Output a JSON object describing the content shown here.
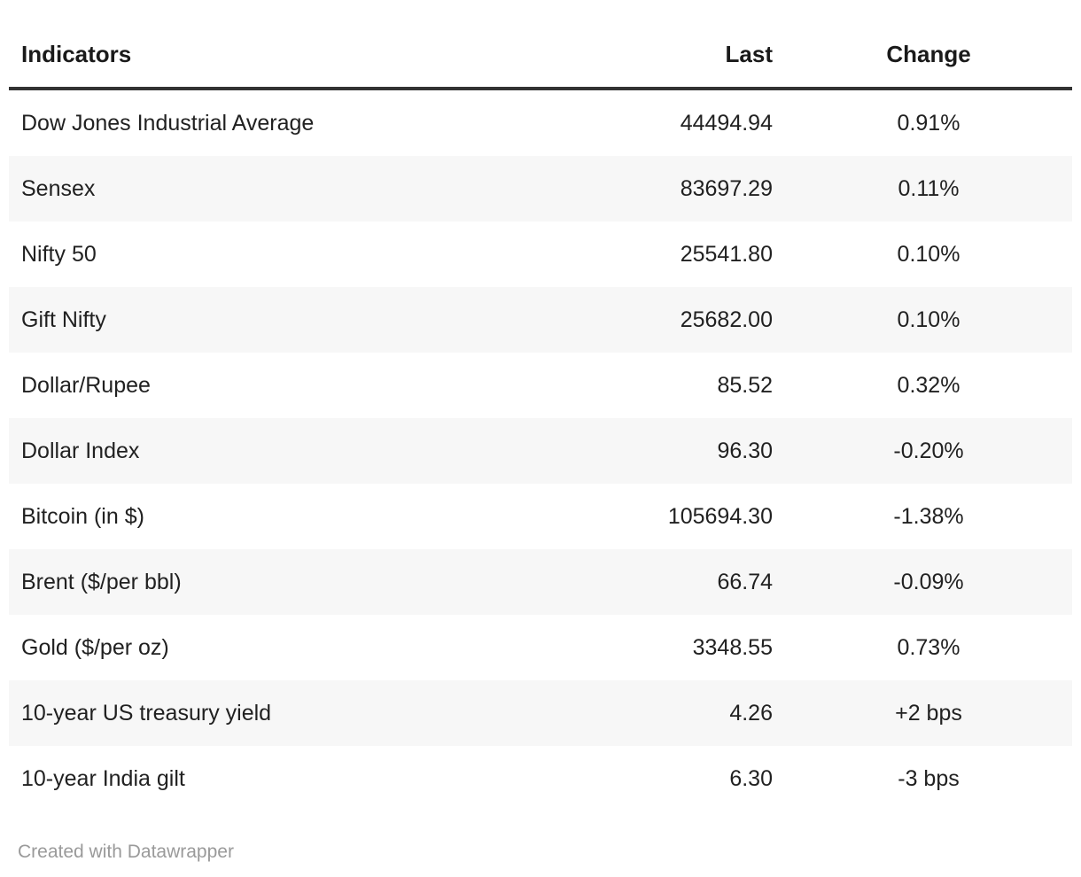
{
  "chart_data": {
    "type": "table",
    "columns": [
      "Indicators",
      "Last",
      "Change"
    ],
    "rows": [
      {
        "indicator": "Dow Jones Industrial Average",
        "last": "44494.94",
        "change": "0.91%"
      },
      {
        "indicator": "Sensex",
        "last": "83697.29",
        "change": "0.11%"
      },
      {
        "indicator": "Nifty 50",
        "last": "25541.80",
        "change": "0.10%"
      },
      {
        "indicator": "Gift Nifty",
        "last": "25682.00",
        "change": "0.10%"
      },
      {
        "indicator": "Dollar/Rupee",
        "last": "85.52",
        "change": "0.32%"
      },
      {
        "indicator": "Dollar Index",
        "last": "96.30",
        "change": "-0.20%"
      },
      {
        "indicator": "Bitcoin (in $)",
        "last": "105694.30",
        "change": "-1.38%"
      },
      {
        "indicator": "Brent ($/per bbl)",
        "last": "66.74",
        "change": "-0.09%"
      },
      {
        "indicator": "Gold ($/per oz)",
        "last": "3348.55",
        "change": "0.73%"
      },
      {
        "indicator": "10-year US treasury yield",
        "last": "4.26",
        "change": "+2 bps"
      },
      {
        "indicator": "10-year India gilt",
        "last": "6.30",
        "change": "-3 bps"
      }
    ],
    "layout_hints": {
      "striped_rows": true,
      "header_rule": true,
      "last_align": "right",
      "change_align": "center"
    }
  },
  "footer": {
    "attribution": "Created with Datawrapper"
  },
  "colors": {
    "stripe": "#f7f7f7",
    "header_rule": "#333333",
    "body_text": "#212121",
    "header_text": "#1a1a1a",
    "attribution_text": "#9a9a9a"
  }
}
